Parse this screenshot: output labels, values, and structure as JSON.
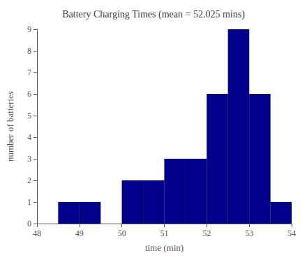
{
  "chart_data": {
    "type": "histogram",
    "title": "Battery Charging Times (mean = 52.025 mins)",
    "xlabel": "time (min)",
    "ylabel": "number of batteries",
    "bins": [
      48.0,
      48.5,
      49.0,
      49.5,
      50.0,
      50.5,
      51.0,
      51.5,
      52.0,
      52.5,
      53.0,
      53.5,
      54.0
    ],
    "values": [
      0,
      1,
      1,
      0,
      2,
      2,
      3,
      3,
      6,
      9,
      6,
      1
    ],
    "color": "#00008B",
    "xlim": [
      48,
      54
    ],
    "ylim": [
      0,
      9
    ],
    "xticks": [
      48,
      49,
      50,
      51,
      52,
      53,
      54
    ],
    "yticks": [
      0,
      1,
      2,
      3,
      4,
      5,
      6,
      7,
      8,
      9
    ],
    "grid": false
  }
}
